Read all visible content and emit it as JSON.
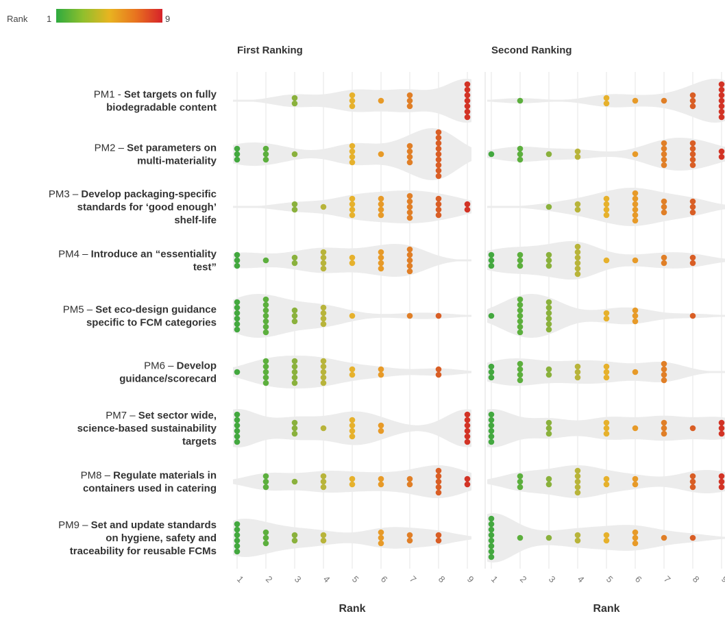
{
  "chart_data": {
    "type": "scatter",
    "legend": {
      "title": "Rank",
      "min": "1",
      "max": "9",
      "placement": "top-left",
      "colors": [
        "#2eaa3f",
        "#8fbf2d",
        "#e8b420",
        "#e8731f",
        "#d6222a"
      ]
    },
    "color_scale": [
      "#43a83f",
      "#5caf3d",
      "#8ab13c",
      "#b8b43a",
      "#e6b12c",
      "#e79a28",
      "#e07f27",
      "#d95e25",
      "#d23325"
    ],
    "violin_color": "#ececec",
    "xlabel": "Rank",
    "x_ticks": [
      "1",
      "2",
      "3",
      "4",
      "5",
      "6",
      "7",
      "8",
      "9"
    ],
    "categories": [
      {
        "id": "PM1",
        "lines": [
          {
            "lead": "PM1 - ",
            "bold": "Set targets on fully"
          },
          {
            "lead": "",
            "bold": "biodegradable content"
          }
        ]
      },
      {
        "id": "PM2",
        "lines": [
          {
            "lead": "PM2 – ",
            "bold": "Set parameters on"
          },
          {
            "lead": "",
            "bold": "multi-materiality"
          }
        ]
      },
      {
        "id": "PM3",
        "lines": [
          {
            "lead": "PM3 – ",
            "bold": "Develop packaging-specific"
          },
          {
            "lead": "",
            "bold": "standards for ‘good enough’"
          },
          {
            "lead": "",
            "bold": "shelf-life"
          }
        ]
      },
      {
        "id": "PM4",
        "lines": [
          {
            "lead": "PM4 – ",
            "bold": "Introduce an “essentiality"
          },
          {
            "lead": "",
            "bold": "test”"
          }
        ]
      },
      {
        "id": "PM5",
        "lines": [
          {
            "lead": "PM5 – ",
            "bold": "Set eco-design guidance"
          },
          {
            "lead": "",
            "bold": "specific to FCM categories"
          }
        ]
      },
      {
        "id": "PM6",
        "lines": [
          {
            "lead": "PM6 – ",
            "bold": "Develop"
          },
          {
            "lead": "",
            "bold": "guidance/scorecard"
          }
        ]
      },
      {
        "id": "PM7",
        "lines": [
          {
            "lead": "PM7 – ",
            "bold": "Set sector wide,"
          },
          {
            "lead": "",
            "bold": "science-based sustainability"
          },
          {
            "lead": "",
            "bold": "targets"
          }
        ]
      },
      {
        "id": "PM8",
        "lines": [
          {
            "lead": "PM8 – ",
            "bold": "Regulate materials in"
          },
          {
            "lead": "",
            "bold": "containers used in catering"
          }
        ]
      },
      {
        "id": "PM9",
        "lines": [
          {
            "lead": "PM9 – ",
            "bold": "Set and update standards"
          },
          {
            "lead": "",
            "bold": "on hygiene, safety and"
          },
          {
            "lead": "",
            "bold": "traceability for reusable FCMs"
          }
        ]
      }
    ],
    "panels": [
      {
        "title": "First Ranking",
        "counts": [
          [
            0,
            0,
            2,
            0,
            3,
            1,
            3,
            0,
            7
          ],
          [
            3,
            3,
            1,
            0,
            4,
            1,
            4,
            9,
            0
          ],
          [
            0,
            0,
            2,
            1,
            4,
            4,
            5,
            4,
            2
          ],
          [
            3,
            1,
            2,
            4,
            2,
            4,
            5,
            0,
            0
          ],
          [
            6,
            7,
            3,
            4,
            1,
            0,
            1,
            1,
            0
          ],
          [
            1,
            5,
            5,
            5,
            2,
            2,
            0,
            2,
            0
          ],
          [
            6,
            0,
            3,
            1,
            4,
            2,
            0,
            0,
            6
          ],
          [
            0,
            3,
            1,
            3,
            2,
            2,
            2,
            5,
            2
          ],
          [
            6,
            3,
            2,
            2,
            0,
            3,
            2,
            2,
            0
          ]
        ]
      },
      {
        "title": "Second Ranking",
        "counts": [
          [
            0,
            1,
            0,
            0,
            2,
            1,
            1,
            3,
            7
          ],
          [
            1,
            3,
            1,
            2,
            0,
            1,
            5,
            5,
            2
          ],
          [
            0,
            0,
            1,
            2,
            4,
            6,
            3,
            3,
            0
          ],
          [
            3,
            3,
            3,
            6,
            1,
            1,
            2,
            2,
            0
          ],
          [
            1,
            7,
            6,
            0,
            2,
            3,
            0,
            1,
            0
          ],
          [
            3,
            4,
            2,
            3,
            3,
            1,
            4,
            0,
            0
          ],
          [
            6,
            0,
            3,
            0,
            3,
            1,
            3,
            1,
            3
          ],
          [
            0,
            3,
            2,
            5,
            2,
            2,
            0,
            3,
            3
          ],
          [
            8,
            1,
            1,
            2,
            2,
            3,
            1,
            1,
            0
          ]
        ]
      }
    ]
  }
}
